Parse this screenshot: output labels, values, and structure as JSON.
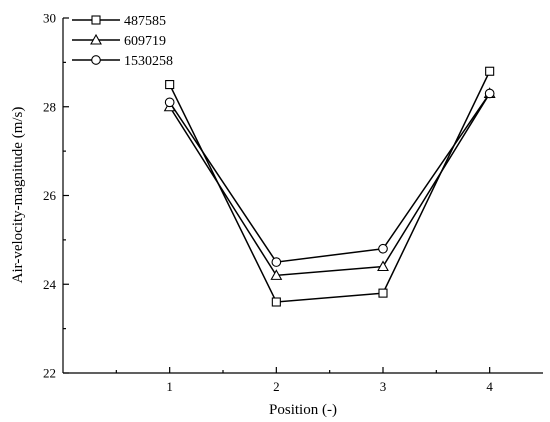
{
  "chart_data": {
    "type": "line",
    "title": "",
    "xlabel": "Position (-)",
    "ylabel": "Air-velocity-magnitude (m/s)",
    "x": [
      1,
      2,
      3,
      4
    ],
    "x_ticks": [
      1,
      2,
      3,
      4
    ],
    "xlim": [
      0.0,
      4.5
    ],
    "ylim": [
      22,
      30
    ],
    "y_ticks": [
      22,
      24,
      26,
      28,
      30
    ],
    "grid": false,
    "legend_position": "top-left",
    "series": [
      {
        "name": "487585",
        "marker": "square",
        "values": [
          28.5,
          23.6,
          23.8,
          28.8
        ],
        "color": "#000000"
      },
      {
        "name": "609719",
        "marker": "triangle",
        "values": [
          28.0,
          24.2,
          24.4,
          28.3
        ],
        "color": "#000000"
      },
      {
        "name": "1530258",
        "marker": "circle",
        "values": [
          28.1,
          24.5,
          24.8,
          28.3
        ],
        "color": "#000000"
      }
    ]
  }
}
